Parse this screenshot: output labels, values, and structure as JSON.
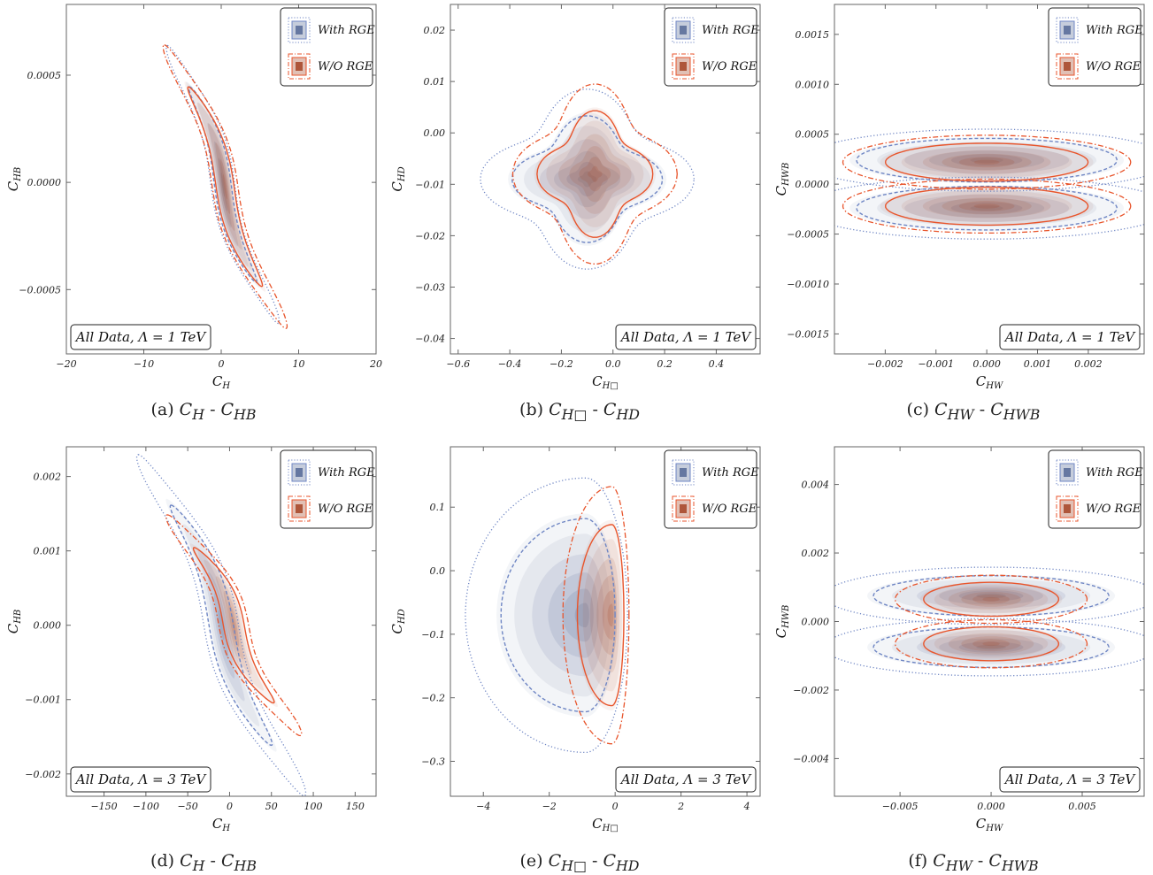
{
  "legend": {
    "with_rge": "With RGE",
    "without_rge": "W/O RGE"
  },
  "colors": {
    "with_rge_fill": "#5b6f9a",
    "with_rge_line": "#6f86c4",
    "without_rge_fill": "#a84a2c",
    "without_rge_line": "#e8552c"
  },
  "chart_data": [
    {
      "type": "contour",
      "id": "a",
      "caption_prefix": "(a)",
      "caption_x": "C",
      "caption_x_sub": "H",
      "caption_sep": "-",
      "caption_y": "C",
      "caption_y_sub": "HB",
      "xlabel": "C",
      "xlabel_sub": "H",
      "ylabel": "C",
      "ylabel_sub": "HB",
      "xlim": [
        -20,
        20
      ],
      "ylim": [
        -0.0008,
        0.00083
      ],
      "xticks": [
        -20,
        -10,
        0,
        10,
        20
      ],
      "xtick_labels": [
        "−20",
        "−10",
        "0",
        "10",
        "20"
      ],
      "yticks": [
        -0.0005,
        0.0,
        0.0005
      ],
      "ytick_labels": [
        "−0.0005",
        "0.0000",
        "0.0005"
      ],
      "annotation": "All Data, Λ = 1 TeV",
      "annotation_pos": "bottom-left",
      "shape": "diag",
      "with_rge": {
        "center": [
          0.2,
          -1e-05
        ],
        "sx": 5.2,
        "sy": 0.00048,
        "tilt": 0.9
      },
      "without_rge": {
        "center": [
          0.5,
          -2e-05
        ],
        "sx": 5.6,
        "sy": 0.00049,
        "tilt": 0.92
      }
    },
    {
      "type": "contour",
      "id": "b",
      "caption_prefix": "(b)",
      "caption_x": "C",
      "caption_x_sub": "H□",
      "caption_sep": "-",
      "caption_y": "C",
      "caption_y_sub": "HD",
      "xlabel": "C",
      "xlabel_sub": "H□",
      "ylabel": "C",
      "ylabel_sub": "HD",
      "xlim": [
        -0.63,
        0.57
      ],
      "ylim": [
        -0.043,
        0.025
      ],
      "xticks": [
        -0.6,
        -0.4,
        -0.2,
        0.0,
        0.2,
        0.4
      ],
      "xtick_labels": [
        "−0.6",
        "−0.4",
        "−0.2",
        "0.0",
        "0.2",
        "0.4"
      ],
      "yticks": [
        -0.04,
        -0.03,
        -0.02,
        -0.01,
        0.0,
        0.01,
        0.02
      ],
      "ytick_labels": [
        "−0.04",
        "−0.03",
        "−0.02",
        "−0.01",
        "0.00",
        "0.01",
        "0.02"
      ],
      "annotation": "All Data, Λ = 1 TeV",
      "annotation_pos": "bottom-right",
      "shape": "blob",
      "with_rge": {
        "center": [
          -0.1,
          -0.009
        ],
        "sx": 0.26,
        "sy": 0.011
      },
      "without_rge": {
        "center": [
          -0.07,
          -0.008
        ],
        "sx": 0.2,
        "sy": 0.011
      }
    },
    {
      "type": "contour",
      "id": "c",
      "caption_prefix": "(c)",
      "caption_x": "C",
      "caption_x_sub": "HW",
      "caption_sep": "-",
      "caption_y": "C",
      "caption_y_sub": "HWB",
      "xlabel": "C",
      "xlabel_sub": "HW",
      "ylabel": "C",
      "ylabel_sub": "HWB",
      "xlim": [
        -0.003,
        0.0031
      ],
      "ylim": [
        -0.0017,
        0.0018
      ],
      "xticks": [
        -0.002,
        -0.001,
        0.0,
        0.001,
        0.002
      ],
      "xtick_labels": [
        "−0.002",
        "−0.001",
        "0.000",
        "0.001",
        "0.002"
      ],
      "yticks": [
        -0.0015,
        -0.001,
        -0.0005,
        0.0,
        0.0005,
        0.001,
        0.0015
      ],
      "ytick_labels": [
        "−0.0015",
        "−0.0010",
        "−0.0005",
        "0.0000",
        "0.0005",
        "0.0010",
        "0.0015"
      ],
      "annotation": "All Data, Λ = 1 TeV",
      "annotation_pos": "bottom-right",
      "shape": "bands",
      "with_rge": {
        "center": [
          0.0,
          0.0
        ],
        "sx": 0.0027,
        "sy": 0.00023,
        "gap": 0.00024
      },
      "without_rge": {
        "center": [
          0.0,
          0.0
        ],
        "sx": 0.0021,
        "sy": 0.0002,
        "gap": 0.00022
      }
    },
    {
      "type": "contour",
      "id": "d",
      "caption_prefix": "(d)",
      "caption_x": "C",
      "caption_x_sub": "H",
      "caption_sep": "-",
      "caption_y": "C",
      "caption_y_sub": "HB",
      "xlabel": "C",
      "xlabel_sub": "H",
      "ylabel": "C",
      "ylabel_sub": "HB",
      "xlim": [
        -195,
        175
      ],
      "ylim": [
        -0.0023,
        0.0024
      ],
      "xticks": [
        -150,
        -100,
        -50,
        0,
        50,
        100,
        150
      ],
      "xtick_labels": [
        "−150",
        "−100",
        "−50",
        "0",
        "50",
        "100",
        "150"
      ],
      "yticks": [
        -0.002,
        -0.001,
        0.0,
        0.001,
        0.002
      ],
      "ytick_labels": [
        "−0.002",
        "−0.001",
        "0.000",
        "0.001",
        "0.002"
      ],
      "annotation": "All Data, Λ = 3 TeV",
      "annotation_pos": "bottom-left",
      "shape": "diag",
      "with_rge": {
        "center": [
          -10,
          0.0
        ],
        "sx": 70,
        "sy": 0.0017,
        "tilt": 0.93
      },
      "without_rge": {
        "center": [
          5,
          0.0
        ],
        "sx": 60,
        "sy": 0.0011,
        "tilt": 0.86
      }
    },
    {
      "type": "contour",
      "id": "e",
      "caption_prefix": "(e)",
      "caption_x": "C",
      "caption_x_sub": "H□",
      "caption_sep": "-",
      "caption_y": "C",
      "caption_y_sub": "HD",
      "xlabel": "C",
      "xlabel_sub": "H□",
      "ylabel": "C",
      "ylabel_sub": "HD",
      "xlim": [
        -5,
        4.4
      ],
      "ylim": [
        -0.355,
        0.195
      ],
      "xticks": [
        -4,
        -2,
        0,
        2,
        4
      ],
      "xtick_labels": [
        "−4",
        "−2",
        "0",
        "2",
        "4"
      ],
      "yticks": [
        -0.3,
        -0.2,
        -0.1,
        0.0,
        0.1
      ],
      "ytick_labels": [
        "−0.3",
        "−0.2",
        "−0.1",
        "0.0",
        "0.1"
      ],
      "annotation": "All Data, Λ = 3 TeV",
      "annotation_pos": "bottom-right",
      "shape": "half",
      "with_rge": {
        "center": [
          -0.9,
          -0.07
        ],
        "sx": 2.7,
        "sy": 0.16
      },
      "without_rge": {
        "center": [
          -0.1,
          -0.07
        ],
        "sx": 1.1,
        "sy": 0.15
      }
    },
    {
      "type": "contour",
      "id": "f",
      "caption_prefix": "(f)",
      "caption_x": "C",
      "caption_x_sub": "HW",
      "caption_sep": "-",
      "caption_y": "C",
      "caption_y_sub": "HWB",
      "xlabel": "C",
      "xlabel_sub": "HW",
      "ylabel": "C",
      "ylabel_sub": "HWB",
      "xlim": [
        -0.0086,
        0.0084
      ],
      "ylim": [
        -0.0051,
        0.0051
      ],
      "xticks": [
        -0.005,
        0.0,
        0.005
      ],
      "xtick_labels": [
        "−0.005",
        "0.000",
        "0.005"
      ],
      "yticks": [
        -0.004,
        -0.002,
        0.0,
        0.002,
        0.004
      ],
      "ytick_labels": [
        "−0.004",
        "−0.002",
        "0.000",
        "0.002",
        "0.004"
      ],
      "annotation": "All Data, Λ = 3 TeV",
      "annotation_pos": "bottom-right",
      "shape": "bands",
      "with_rge": {
        "center": [
          0.0,
          0.0
        ],
        "sx": 0.0068,
        "sy": 0.00062,
        "gap": 0.00075
      },
      "without_rge": {
        "center": [
          0.0,
          0.0
        ],
        "sx": 0.0039,
        "sy": 0.00052,
        "gap": 0.00065
      }
    }
  ]
}
